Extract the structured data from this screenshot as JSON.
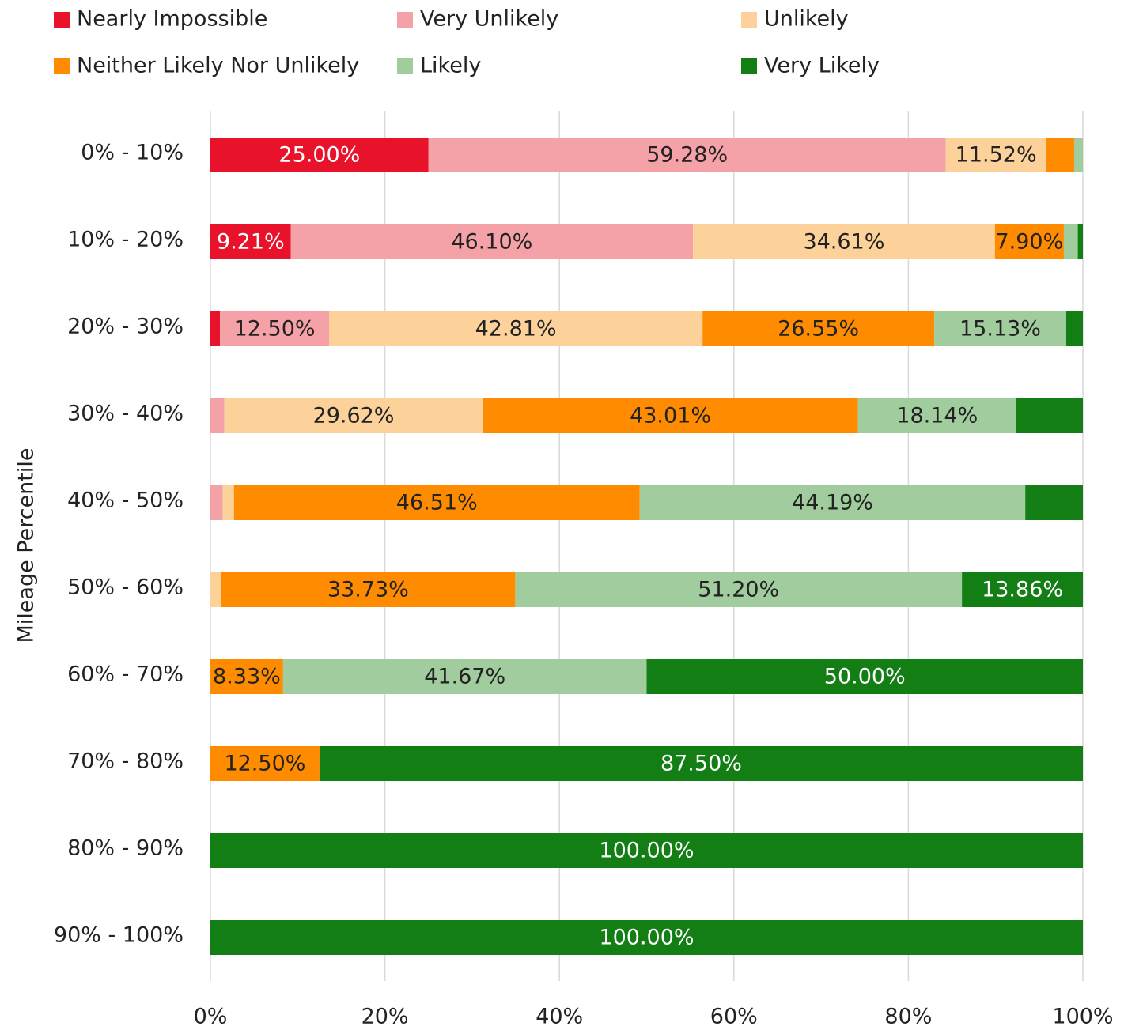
{
  "chart_data": {
    "type": "stacked-barh",
    "ylabel": "Mileage Percentile",
    "categories": [
      "0% - 10%",
      "10% - 20%",
      "20% - 30%",
      "30% - 40%",
      "40% - 50%",
      "50% - 60%",
      "60% - 70%",
      "70% - 80%",
      "80% - 90%",
      "90% - 100%"
    ],
    "series": [
      {
        "name": "Nearly Impossible",
        "color": "#e8132a",
        "values": [
          25.0,
          9.21,
          1.1,
          0,
          0,
          0,
          0,
          0,
          0,
          0
        ],
        "value_labels": [
          "25.00%",
          "9.21%",
          null,
          null,
          null,
          null,
          null,
          null,
          null,
          null
        ]
      },
      {
        "name": "Very Unlikely",
        "color": "#f4a1a8",
        "values": [
          59.28,
          46.1,
          12.5,
          1.6,
          1.4,
          0,
          0,
          0,
          0,
          0
        ],
        "value_labels": [
          "59.28%",
          "46.10%",
          "12.50%",
          null,
          null,
          null,
          null,
          null,
          null,
          null
        ]
      },
      {
        "name": "Unlikely",
        "color": "#fdd19a",
        "values": [
          11.52,
          34.61,
          42.81,
          29.62,
          1.3,
          1.21,
          0,
          0,
          0,
          0
        ],
        "value_labels": [
          "11.52%",
          "34.61%",
          "42.81%",
          "29.62%",
          null,
          null,
          null,
          null,
          null,
          null
        ]
      },
      {
        "name": "Neither Likely Nor Unlikely",
        "color": "#ff8c00",
        "values": [
          3.2,
          7.9,
          26.55,
          43.01,
          46.51,
          33.73,
          8.33,
          12.5,
          0,
          0
        ],
        "value_labels": [
          null,
          "7.90%",
          "26.55%",
          "43.01%",
          "46.51%",
          "33.73%",
          "8.33%",
          "12.50%",
          null,
          null
        ]
      },
      {
        "name": "Likely",
        "color": "#a1cc9e",
        "values": [
          1.0,
          1.6,
          15.13,
          18.14,
          44.19,
          51.2,
          41.67,
          0,
          0,
          0
        ],
        "value_labels": [
          null,
          null,
          "15.13%",
          "18.14%",
          "44.19%",
          "51.20%",
          "41.67%",
          null,
          null,
          null
        ]
      },
      {
        "name": "Very Likely",
        "color": "#137e14",
        "values": [
          0,
          0.58,
          1.91,
          7.63,
          6.6,
          13.86,
          50.0,
          87.5,
          100.0,
          100.0
        ],
        "value_labels": [
          null,
          null,
          null,
          null,
          null,
          "13.86%",
          "50.00%",
          "87.50%",
          "100.00%",
          "100.00%"
        ]
      }
    ],
    "xlim": [
      0,
      100
    ],
    "xticks": [
      {
        "value": 0,
        "label": "0%"
      },
      {
        "value": 20,
        "label": "20%"
      },
      {
        "value": 40,
        "label": "40%"
      },
      {
        "value": 60,
        "label": "60%"
      },
      {
        "value": 80,
        "label": "80%"
      },
      {
        "value": 100,
        "label": "100%"
      }
    ],
    "grid": true,
    "legend": "top"
  }
}
